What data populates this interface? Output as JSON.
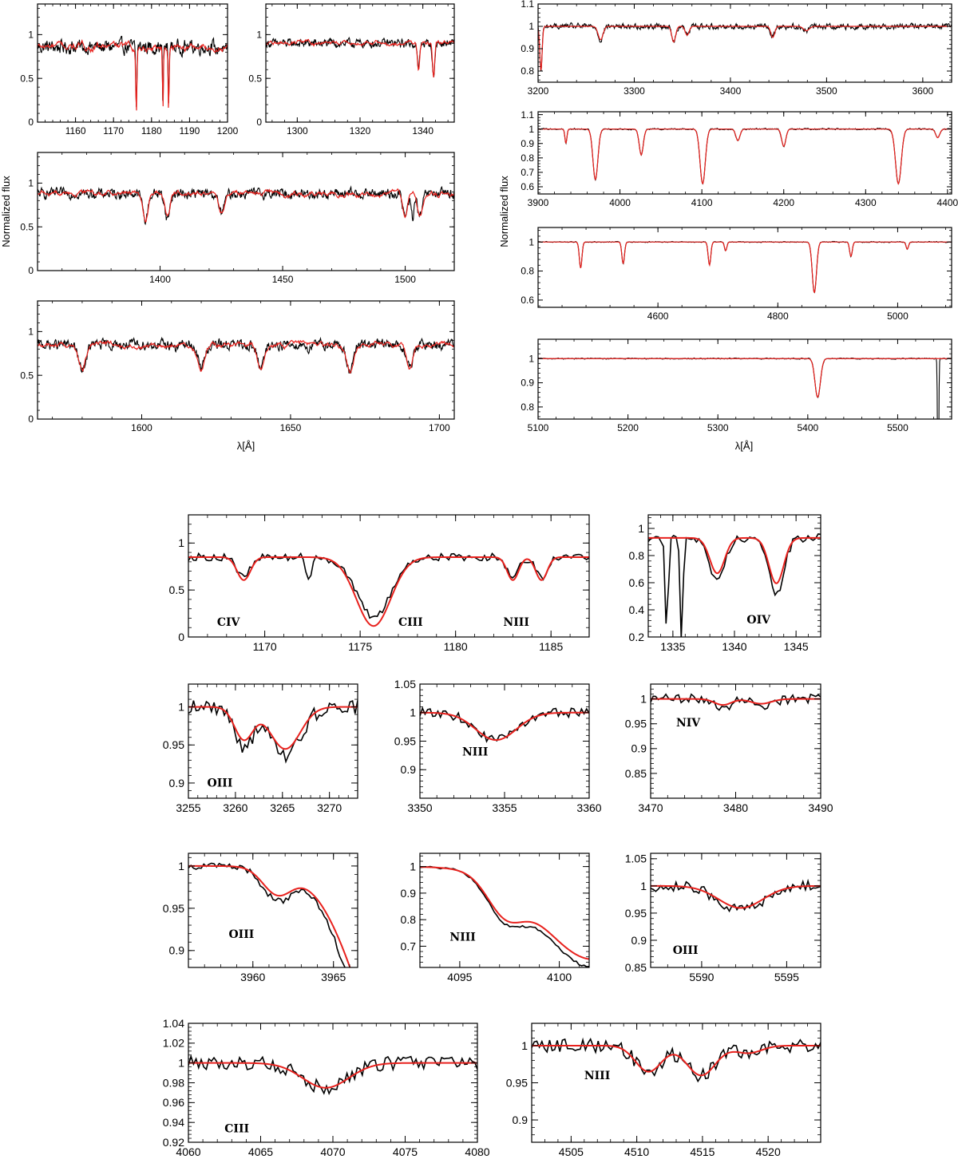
{
  "figure": {
    "top_xlabel_left": "λ[Å]",
    "top_xlabel_right": "λ[Å]",
    "top_ylabel_left": "Normalized flux",
    "top_ylabel_right": "Normalized flux",
    "colors": {
      "observed": "#000000",
      "model": "#e8211d",
      "frame": "#000000"
    }
  },
  "chart_data": [
    {
      "id": "u1",
      "type": "line",
      "xlim": [
        1150,
        1200
      ],
      "ylim": [
        0,
        1.35
      ],
      "xticks": [
        1160,
        1170,
        1180,
        1190,
        1200
      ],
      "xticklabels": [
        "1160",
        "1170",
        "1180",
        "1190",
        "1200"
      ],
      "yticks": [
        0,
        0.5,
        1
      ],
      "yticklabels": [
        "0",
        "0.5",
        "1"
      ],
      "lines": [
        [
          1176,
          0.82,
          0.15
        ],
        [
          1183,
          0.8,
          0.12
        ],
        [
          1184.5,
          0.8,
          0.12
        ]
      ],
      "ism": [
        [
          1190.4,
          0.0,
          0.35
        ],
        [
          1193.3,
          0.0,
          0.35
        ],
        [
          1197.2,
          0.05,
          0.3
        ],
        [
          1199.5,
          0.1,
          0.3
        ]
      ],
      "continuum": 0.86,
      "noise": 0.1,
      "model_depth_scale": 1.05,
      "label": ""
    },
    {
      "id": "u2",
      "type": "line",
      "xlim": [
        1290,
        1350
      ],
      "ylim": [
        0,
        1.35
      ],
      "xticks": [
        1300,
        1320,
        1340
      ],
      "xticklabels": [
        "1300",
        "1320",
        "1340"
      ],
      "yticks": [
        0,
        0.5,
        1
      ],
      "yticklabels": [
        "0",
        "0.5",
        "1"
      ],
      "lines": [
        [
          1338.6,
          0.35,
          0.35
        ],
        [
          1343.4,
          0.45,
          0.35
        ]
      ],
      "ism": [
        [
          1302.2,
          0.0,
          0.45
        ],
        [
          1304.9,
          0.0,
          0.4
        ],
        [
          1334.5,
          0.0,
          0.35
        ],
        [
          1335.7,
          0.0,
          0.3
        ]
      ],
      "continuum": 0.9,
      "noise": 0.06,
      "model_depth_scale": 1.0,
      "label": ""
    },
    {
      "id": "u3",
      "type": "line",
      "xlim": [
        1350,
        1520
      ],
      "ylim": [
        0,
        1.35
      ],
      "xticks": [
        1400,
        1450,
        1500
      ],
      "xticklabels": [
        "1400",
        "1450",
        "1500"
      ],
      "yticks": [
        0,
        0.5,
        1
      ],
      "yticklabels": [
        "0",
        "0.5",
        "1"
      ],
      "lines": [
        [
          1394,
          0.35,
          1.0
        ],
        [
          1403,
          0.3,
          1.0
        ],
        [
          1425,
          0.25,
          1.2
        ],
        [
          1500,
          0.3,
          1.0
        ],
        [
          1506,
          0.3,
          1.0
        ]
      ],
      "ism": [
        [
          1393.8,
          0.0,
          0.6
        ],
        [
          1402.8,
          0.05,
          0.6
        ],
        [
          1503,
          0.3,
          0.6
        ]
      ],
      "continuum": 0.88,
      "noise": 0.07,
      "model_depth_scale": 1.05,
      "label": ""
    },
    {
      "id": "u4",
      "type": "line",
      "xlim": [
        1565,
        1705
      ],
      "ylim": [
        0,
        1.35
      ],
      "xticks": [
        1600,
        1650,
        1700
      ],
      "xticklabels": [
        "1600",
        "1650",
        "1700"
      ],
      "yticks": [
        0,
        0.5,
        1
      ],
      "yticklabels": [
        "0",
        "0.5",
        "1"
      ],
      "lines": [
        [
          1580,
          0.35,
          1.2
        ],
        [
          1620,
          0.3,
          1.2
        ],
        [
          1640,
          0.3,
          1.2
        ],
        [
          1670,
          0.35,
          1.2
        ],
        [
          1690,
          0.3,
          1.2
        ]
      ],
      "ism": [
        [
          1608,
          0.0,
          0.4
        ],
        [
          1611.5,
          0.1,
          0.3
        ],
        [
          1631,
          0.0,
          0.3
        ],
        [
          1656,
          0.1,
          0.3
        ],
        [
          1670.8,
          0.0,
          0.4
        ],
        [
          1688.5,
          0.0,
          0.4
        ]
      ],
      "continuum": 0.85,
      "noise": 0.07,
      "model_depth_scale": 1.05,
      "label": ""
    },
    {
      "id": "o1",
      "type": "line",
      "xlim": [
        3200,
        3630
      ],
      "ylim": [
        0.75,
        1.1
      ],
      "xticks": [
        3200,
        3300,
        3400,
        3500,
        3600
      ],
      "xticklabels": [
        "3200",
        "3300",
        "3400",
        "3500",
        "3600"
      ],
      "yticks": [
        0.8,
        0.9,
        1,
        1.1
      ],
      "yticklabels": [
        "0.8",
        "0.9",
        "1",
        "1.1"
      ],
      "lines": [
        [
          3203,
          0.2,
          1.2
        ],
        [
          3265,
          0.06,
          2.5
        ],
        [
          3341,
          0.07,
          2.0
        ],
        [
          3355,
          0.04,
          2.0
        ],
        [
          3444,
          0.05,
          2.0
        ],
        [
          3479,
          0.02,
          3.0
        ]
      ],
      "ism": [],
      "continuum": 1.0,
      "noise": 0.015,
      "model_depth_scale": 1.0,
      "label": ""
    },
    {
      "id": "o2",
      "type": "line",
      "xlim": [
        3900,
        4405
      ],
      "ylim": [
        0.55,
        1.12
      ],
      "xticks": [
        3900,
        4000,
        4100,
        4200,
        4300,
        4400
      ],
      "xticklabels": [
        "3900",
        "4000",
        "4100",
        "4200",
        "4300",
        "4400"
      ],
      "yticks": [
        0.6,
        0.7,
        0.8,
        0.9,
        1,
        1.1
      ],
      "yticklabels": [
        "0.6",
        "0.7",
        "0.8",
        "0.9",
        "1",
        "1.1"
      ],
      "lines": [
        [
          3970,
          0.35,
          3.0
        ],
        [
          4026,
          0.18,
          2.5
        ],
        [
          4101,
          0.38,
          3.2
        ],
        [
          4144,
          0.08,
          2.5
        ],
        [
          4200,
          0.12,
          2.5
        ],
        [
          4340,
          0.38,
          3.5
        ],
        [
          4388,
          0.06,
          2.5
        ],
        [
          3934,
          0.1,
          1.2
        ]
      ],
      "ism": [],
      "continuum": 1.0,
      "noise": 0.006,
      "model_depth_scale": 1.0,
      "label": ""
    },
    {
      "id": "o3",
      "type": "line",
      "xlim": [
        4400,
        5090
      ],
      "ylim": [
        0.55,
        1.1
      ],
      "xticks": [
        4600,
        4800,
        5000
      ],
      "xticklabels": [
        "4600",
        "4800",
        "5000"
      ],
      "yticks": [
        0.6,
        0.8,
        1
      ],
      "yticklabels": [
        "0.6",
        "0.8",
        "1"
      ],
      "lines": [
        [
          4471,
          0.18,
          2.2
        ],
        [
          4542,
          0.15,
          2.2
        ],
        [
          4686,
          0.16,
          2.2
        ],
        [
          4713,
          0.06,
          2.0
        ],
        [
          4861,
          0.35,
          3.5
        ],
        [
          4922,
          0.1,
          2.2
        ],
        [
          5016,
          0.05,
          2.0
        ]
      ],
      "ism": [],
      "continuum": 1.0,
      "noise": 0.004,
      "model_depth_scale": 1.0,
      "label": ""
    },
    {
      "id": "o4",
      "type": "line",
      "xlim": [
        5100,
        5560
      ],
      "ylim": [
        0.75,
        1.08
      ],
      "xticks": [
        5100,
        5200,
        5300,
        5400,
        5500
      ],
      "xticklabels": [
        "5100",
        "5200",
        "5300",
        "5400",
        "5500"
      ],
      "yticks": [
        0.8,
        0.9,
        1
      ],
      "yticklabels": [
        "0.8",
        "0.9",
        "1"
      ],
      "lines": [
        [
          5411,
          0.16,
          3.0
        ]
      ],
      "ism": [
        [
          5545,
          0.7,
          0.6
        ]
      ],
      "continuum": 1.0,
      "noise": 0.003,
      "model_depth_scale": 1.0,
      "label": ""
    },
    {
      "id": "z1",
      "type": "line",
      "xlim": [
        1166,
        1187
      ],
      "ylim": [
        0,
        1.3
      ],
      "xticks": [
        1170,
        1175,
        1180,
        1185
      ],
      "xticklabels": [
        "1170",
        "1175",
        "1180",
        "1185"
      ],
      "yticks": [
        0,
        0.5,
        1
      ],
      "yticklabels": [
        "0",
        "0.5",
        "1"
      ],
      "lines": [
        [
          1168.9,
          0.25,
          0.35
        ],
        [
          1175.7,
          0.75,
          0.9
        ],
        [
          1183.0,
          0.25,
          0.3
        ],
        [
          1184.5,
          0.25,
          0.3
        ]
      ],
      "ism": [
        [
          1172.3,
          0.3,
          0.12
        ]
      ],
      "continuum": 0.85,
      "noise": 0.04,
      "model_depth_scale": 1.15,
      "label": "",
      "annotations": [
        {
          "text": "CIV",
          "at": [
            1167.5,
            0.12
          ]
        },
        {
          "text": "CIII",
          "at": [
            1177,
            0.12
          ]
        },
        {
          "text": "NIII",
          "at": [
            1182.5,
            0.12
          ]
        }
      ]
    },
    {
      "id": "z2",
      "type": "line",
      "xlim": [
        1333,
        1347
      ],
      "ylim": [
        0.2,
        1.1
      ],
      "xticks": [
        1335,
        1340,
        1345
      ],
      "xticklabels": [
        "1335",
        "1340",
        "1345"
      ],
      "yticks": [
        0.2,
        0.4,
        0.6,
        0.8,
        1
      ],
      "yticklabels": [
        "0.2",
        "0.4",
        "0.6",
        "0.8",
        "1"
      ],
      "lines": [
        [
          1338.6,
          0.35,
          0.6
        ],
        [
          1343.4,
          0.45,
          0.6
        ]
      ],
      "ism": [
        [
          1334.5,
          0.8,
          0.12
        ],
        [
          1335.7,
          0.8,
          0.12
        ]
      ],
      "continuum": 0.93,
      "noise": 0.03,
      "model_depth_scale": 0.8,
      "label": "",
      "annotations": [
        {
          "text": "OIV",
          "at": [
            1341,
            0.3
          ]
        }
      ]
    },
    {
      "id": "z3",
      "type": "line",
      "xlim": [
        3255,
        3273
      ],
      "ylim": [
        0.88,
        1.03
      ],
      "xticks": [
        3255,
        3260,
        3265,
        3270
      ],
      "xticklabels": [
        "3255",
        "3260",
        "3265",
        "3270"
      ],
      "yticks": [
        0.9,
        0.95,
        1
      ],
      "yticklabels": [
        "0.9",
        "0.95",
        "1"
      ],
      "lines": [
        [
          3260.9,
          0.05,
          1.0
        ],
        [
          3265.3,
          0.065,
          1.6
        ]
      ],
      "ism": [],
      "continuum": 1.0,
      "noise": 0.01,
      "model_depth_scale": 0.85,
      "label": "",
      "annotations": [
        {
          "text": "OIII",
          "at": [
            3257,
            0.895
          ]
        }
      ]
    },
    {
      "id": "z4",
      "type": "line",
      "xlim": [
        3350,
        3360
      ],
      "ylim": [
        0.85,
        1.05
      ],
      "xticks": [
        3350,
        3355,
        3360
      ],
      "xticklabels": [
        "3350",
        "3355",
        "3360"
      ],
      "yticks": [
        0.9,
        0.95,
        1,
        1.05
      ],
      "yticklabels": [
        "0.9",
        "0.95",
        "1",
        "1.05"
      ],
      "lines": [
        [
          3354.5,
          0.048,
          1.2
        ]
      ],
      "ism": [],
      "continuum": 1.0,
      "noise": 0.008,
      "model_depth_scale": 1.0,
      "label": "",
      "annotations": [
        {
          "text": "NIII",
          "at": [
            3352.5,
            0.925
          ]
        }
      ]
    },
    {
      "id": "z5",
      "type": "line",
      "xlim": [
        3470,
        3490
      ],
      "ylim": [
        0.8,
        1.03
      ],
      "xticks": [
        3470,
        3480,
        3490
      ],
      "xticklabels": [
        "3470",
        "3480",
        "3490"
      ],
      "yticks": [
        0.85,
        0.9,
        0.95,
        1
      ],
      "yticklabels": [
        "0.85",
        "0.9",
        "0.95",
        "1"
      ],
      "lines": [
        [
          3478.5,
          0.015,
          1.0
        ],
        [
          3483,
          0.012,
          1.2
        ]
      ],
      "ism": [],
      "continuum": 1.0,
      "noise": 0.01,
      "model_depth_scale": 0.8,
      "label": "",
      "annotations": [
        {
          "text": "NIV",
          "at": [
            3473,
            0.945
          ]
        }
      ]
    },
    {
      "id": "z6",
      "type": "line",
      "xlim": [
        3956,
        3966.5
      ],
      "ylim": [
        0.88,
        1.015
      ],
      "xticks": [
        3960,
        3965
      ],
      "xticklabels": [
        "3960",
        "3965"
      ],
      "yticks": [
        0.9,
        0.95,
        1
      ],
      "yticklabels": [
        "0.9",
        "0.95",
        "1"
      ],
      "lines": [
        [
          3961.5,
          0.035,
          0.9
        ],
        [
          3970,
          0.34,
          3.0
        ]
      ],
      "ism": [],
      "continuum": 1.0,
      "noise": 0.004,
      "model_depth_scale": 0.85,
      "label": "",
      "annotations": [
        {
          "text": "OIII",
          "at": [
            3958.5,
            0.915
          ]
        }
      ]
    },
    {
      "id": "z7",
      "type": "line",
      "xlim": [
        4093,
        4101.5
      ],
      "ylim": [
        0.62,
        1.05
      ],
      "xticks": [
        4095,
        4100
      ],
      "xticklabels": [
        "4095",
        "4100"
      ],
      "yticks": [
        0.7,
        0.8,
        0.9,
        1
      ],
      "yticklabels": [
        "0.7",
        "0.8",
        "0.9",
        "1"
      ],
      "lines": [
        [
          4097.3,
          0.14,
          0.9
        ],
        [
          4101.7,
          0.38,
          2.6
        ]
      ],
      "ism": [],
      "continuum": 1.0,
      "noise": 0.004,
      "model_depth_scale": 0.92,
      "label": "",
      "annotations": [
        {
          "text": "NIII",
          "at": [
            4094.5,
            0.72
          ]
        }
      ]
    },
    {
      "id": "z8",
      "type": "line",
      "xlim": [
        5587,
        5597
      ],
      "ylim": [
        0.85,
        1.06
      ],
      "xticks": [
        5590,
        5595
      ],
      "xticklabels": [
        "5590",
        "5595"
      ],
      "yticks": [
        0.85,
        0.9,
        0.95,
        1,
        1.05
      ],
      "yticklabels": [
        "0.85",
        "0.9",
        "0.95",
        "1",
        "1.05"
      ],
      "lines": [
        [
          5592.3,
          0.045,
          1.3
        ]
      ],
      "ism": [],
      "continuum": 1.0,
      "noise": 0.01,
      "model_depth_scale": 0.9,
      "label": "",
      "annotations": [
        {
          "text": "OIII",
          "at": [
            5588.3,
            0.875
          ]
        }
      ]
    },
    {
      "id": "z9",
      "type": "line",
      "xlim": [
        4060,
        4080
      ],
      "ylim": [
        0.92,
        1.04
      ],
      "xticks": [
        4060,
        4065,
        4070,
        4075,
        4080
      ],
      "xticklabels": [
        "4060",
        "4065",
        "4070",
        "4075",
        "4080"
      ],
      "yticks": [
        0.92,
        0.94,
        0.96,
        0.98,
        1,
        1.02,
        1.04
      ],
      "yticklabels": [
        "0.92",
        "0.94",
        "0.96",
        "0.98",
        "1",
        "1.02",
        "1.04"
      ],
      "lines": [
        [
          4069.5,
          0.025,
          1.6
        ]
      ],
      "ism": [],
      "continuum": 1.0,
      "noise": 0.007,
      "model_depth_scale": 1.0,
      "label": "",
      "annotations": [
        {
          "text": "CIII",
          "at": [
            4062.5,
            0.93
          ]
        }
      ]
    },
    {
      "id": "z10",
      "type": "line",
      "xlim": [
        4502,
        4524
      ],
      "ylim": [
        0.87,
        1.03
      ],
      "xticks": [
        4505,
        4510,
        4515,
        4520
      ],
      "xticklabels": [
        "4505",
        "4510",
        "4515",
        "4520"
      ],
      "yticks": [
        0.9,
        0.95,
        1
      ],
      "yticklabels": [
        "0.9",
        "0.95",
        "1"
      ],
      "lines": [
        [
          4510.9,
          0.035,
          1.0
        ],
        [
          4514.9,
          0.04,
          1.1
        ],
        [
          4518.5,
          0.01,
          1.0
        ]
      ],
      "ism": [],
      "continuum": 1.0,
      "noise": 0.009,
      "model_depth_scale": 1.0,
      "label": "",
      "annotations": [
        {
          "text": "NIII",
          "at": [
            4506,
            0.955
          ]
        }
      ]
    }
  ]
}
